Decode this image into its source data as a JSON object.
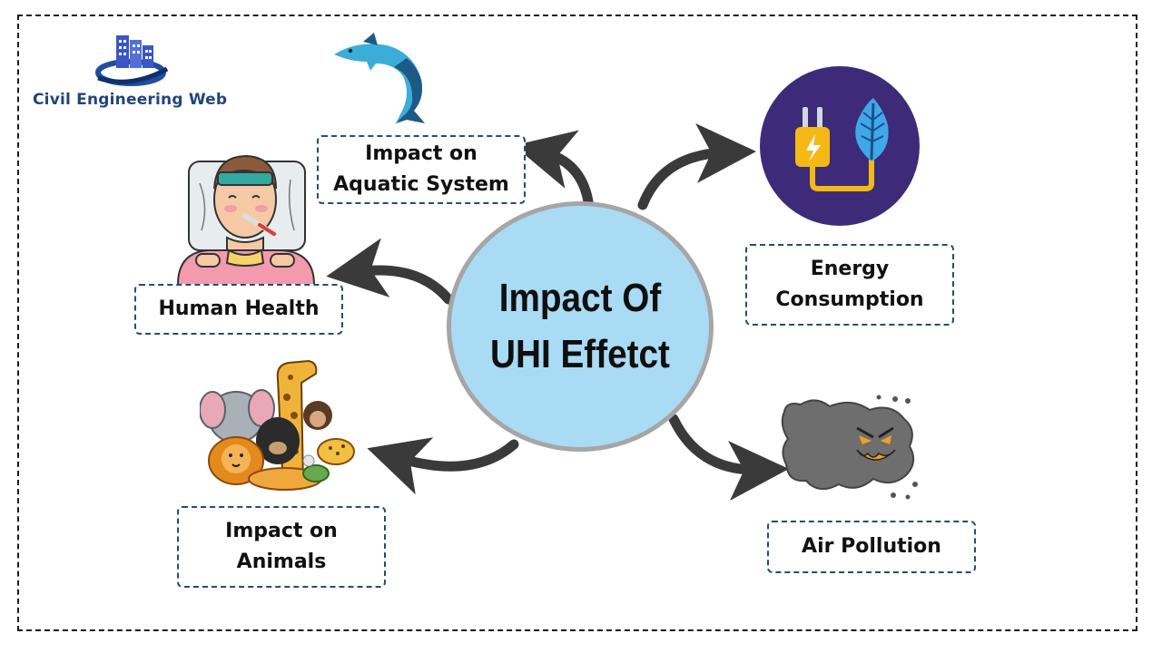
{
  "logo": {
    "text": "Civil Engineering Web"
  },
  "center": {
    "title": "Impact Of UHI Effetct"
  },
  "nodes": {
    "aquatic": {
      "label": "Impact on Aquatic System",
      "icon": "dolphin-icon"
    },
    "energy": {
      "label": "Energy Consumption",
      "icon": "plug-leaf-icon"
    },
    "health": {
      "label": "Human Health",
      "icon": "sick-person-icon"
    },
    "animals": {
      "label": "Impact on Animals",
      "icon": "animals-group-icon"
    },
    "air": {
      "label": "Air Pollution",
      "icon": "smog-cloud-icon"
    }
  },
  "colors": {
    "center_fill": "#a9dbf5",
    "center_border": "#a6a6a6",
    "box_border": "#1f4e79",
    "arrow": "#3a3a3a",
    "logo_text": "#23457a"
  }
}
